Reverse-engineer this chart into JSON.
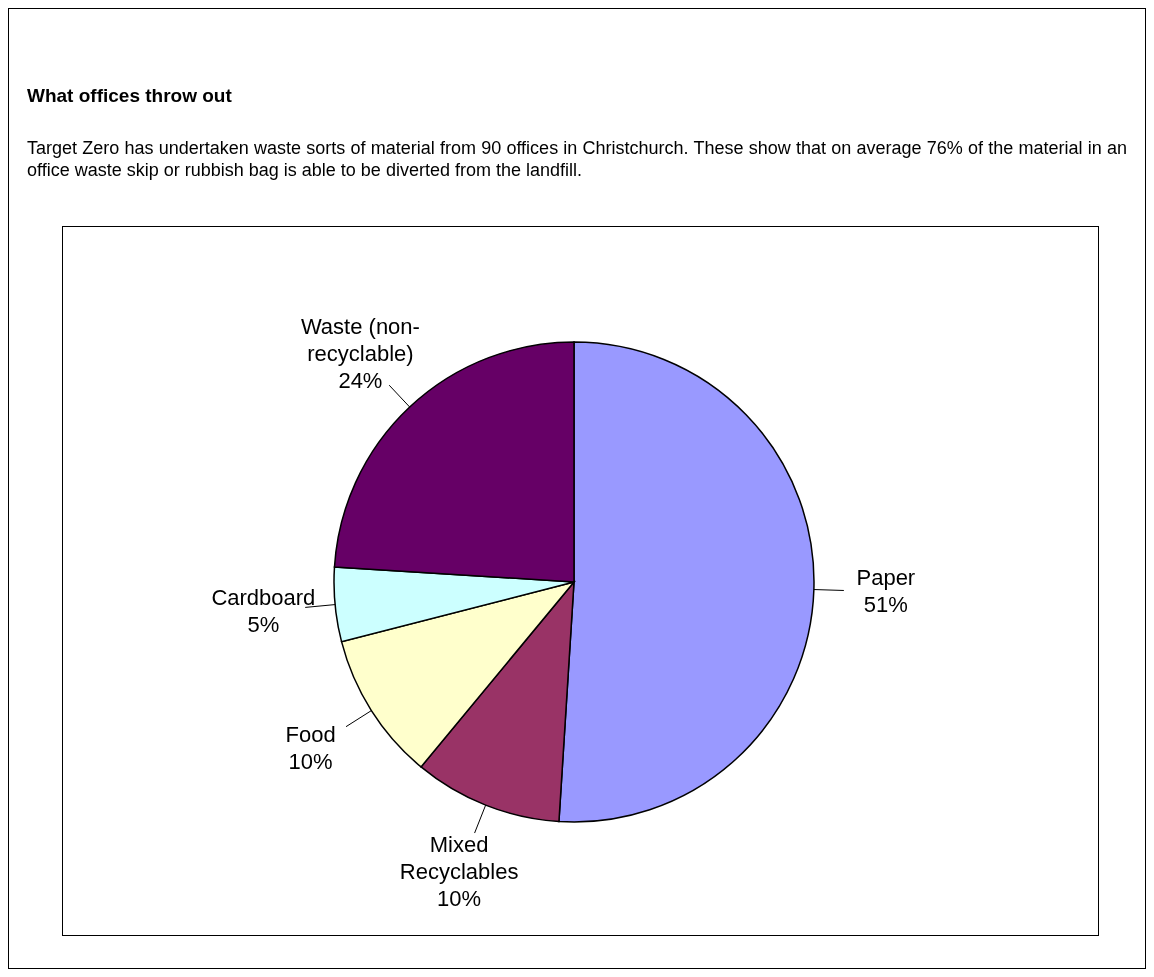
{
  "chart_data": {
    "type": "pie",
    "title": "What offices throw out",
    "subtitle": "Target Zero has undertaken waste sorts of material from 90 offices in Christchurch. These show that on average 76% of the material in an office waste skip or rubbish bag is able to be diverted from the landfill.",
    "categories": [
      "Paper",
      "Mixed Recyclables",
      "Food",
      "Cardboard",
      "Waste (non-recyclable)"
    ],
    "values": [
      51,
      10,
      10,
      5,
      24
    ],
    "colors": [
      "#9999ff",
      "#993366",
      "#ffffcc",
      "#ccffff",
      "#660066"
    ],
    "value_labels": [
      "51%",
      "10%",
      "10%",
      "5%",
      "24%"
    ]
  }
}
